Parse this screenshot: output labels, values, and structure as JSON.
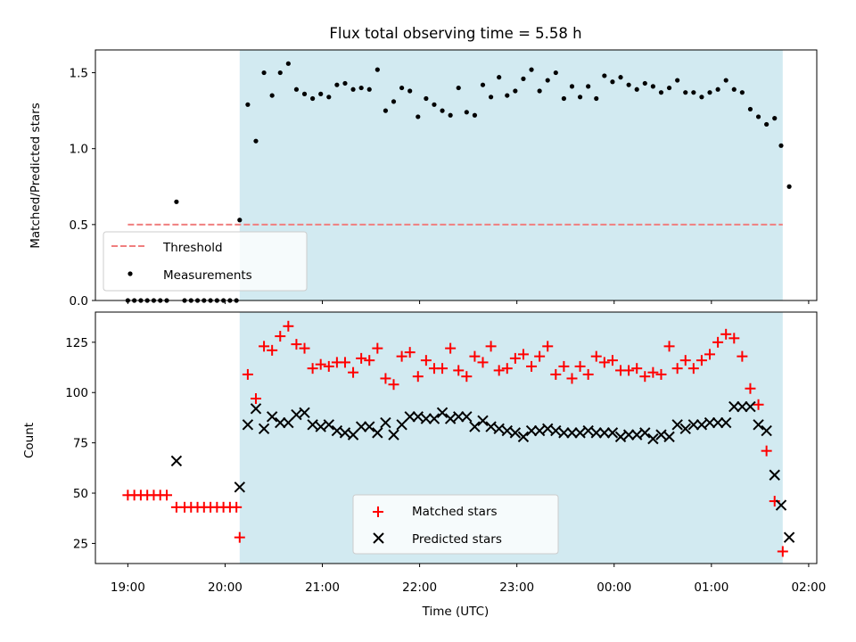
{
  "chart_data": [
    {
      "type": "scatter",
      "title": "Flux total observing time = 5.58 h",
      "ylabel": "Matched/Predicted stars",
      "xlim": [
        "18:40",
        "02:05"
      ],
      "ylim": [
        0,
        1.65
      ],
      "yticks": [
        0.0,
        0.5,
        1.0,
        1.5
      ],
      "ytick_labels": [
        "0.0",
        "0.5",
        "1.0",
        "1.5"
      ],
      "shaded_interval": {
        "start": "20:09",
        "end": "01:44",
        "color": "#add8e6"
      },
      "threshold": {
        "name": "Threshold",
        "value": 0.5,
        "x_start": "19:00",
        "x_end": "01:44",
        "color": "#f07f7f"
      },
      "legend": {
        "placement": "lower-left",
        "entries": [
          "Threshold",
          "Measurements"
        ]
      },
      "series": [
        {
          "name": "Measurements",
          "color": "#000000",
          "marker": "dot",
          "points": [
            [
              "19:00",
              0.0
            ],
            [
              "19:04",
              0.0
            ],
            [
              "19:08",
              0.0
            ],
            [
              "19:12",
              0.0
            ],
            [
              "19:16",
              0.0
            ],
            [
              "19:20",
              0.0
            ],
            [
              "19:24",
              0.0
            ],
            [
              "19:30",
              0.65
            ],
            [
              "19:35",
              0.0
            ],
            [
              "19:39",
              0.0
            ],
            [
              "19:43",
              0.0
            ],
            [
              "19:47",
              0.0
            ],
            [
              "19:51",
              0.0
            ],
            [
              "19:55",
              0.0
            ],
            [
              "19:59",
              0.0
            ],
            [
              "20:03",
              0.0
            ],
            [
              "20:07",
              0.0
            ],
            [
              "20:09",
              0.53
            ],
            [
              "20:14",
              1.29
            ],
            [
              "20:19",
              1.05
            ],
            [
              "20:24",
              1.5
            ],
            [
              "20:29",
              1.35
            ],
            [
              "20:34",
              1.5
            ],
            [
              "20:39",
              1.56
            ],
            [
              "20:44",
              1.39
            ],
            [
              "20:49",
              1.36
            ],
            [
              "20:54",
              1.33
            ],
            [
              "20:59",
              1.36
            ],
            [
              "21:04",
              1.34
            ],
            [
              "21:09",
              1.42
            ],
            [
              "21:14",
              1.43
            ],
            [
              "21:19",
              1.39
            ],
            [
              "21:24",
              1.4
            ],
            [
              "21:29",
              1.39
            ],
            [
              "21:34",
              1.52
            ],
            [
              "21:39",
              1.25
            ],
            [
              "21:44",
              1.31
            ],
            [
              "21:49",
              1.4
            ],
            [
              "21:54",
              1.38
            ],
            [
              "21:59",
              1.21
            ],
            [
              "22:04",
              1.33
            ],
            [
              "22:09",
              1.29
            ],
            [
              "22:14",
              1.25
            ],
            [
              "22:19",
              1.22
            ],
            [
              "22:24",
              1.4
            ],
            [
              "22:29",
              1.24
            ],
            [
              "22:34",
              1.22
            ],
            [
              "22:39",
              1.42
            ],
            [
              "22:44",
              1.34
            ],
            [
              "22:49",
              1.47
            ],
            [
              "22:54",
              1.35
            ],
            [
              "22:59",
              1.38
            ],
            [
              "23:04",
              1.46
            ],
            [
              "23:09",
              1.52
            ],
            [
              "23:14",
              1.38
            ],
            [
              "23:19",
              1.45
            ],
            [
              "23:24",
              1.5
            ],
            [
              "23:29",
              1.33
            ],
            [
              "23:34",
              1.41
            ],
            [
              "23:39",
              1.34
            ],
            [
              "23:44",
              1.41
            ],
            [
              "23:49",
              1.33
            ],
            [
              "23:54",
              1.48
            ],
            [
              "23:59",
              1.44
            ],
            [
              "00:04",
              1.47
            ],
            [
              "00:09",
              1.42
            ],
            [
              "00:14",
              1.39
            ],
            [
              "00:19",
              1.43
            ],
            [
              "00:24",
              1.41
            ],
            [
              "00:29",
              1.37
            ],
            [
              "00:34",
              1.4
            ],
            [
              "00:39",
              1.45
            ],
            [
              "00:44",
              1.37
            ],
            [
              "00:49",
              1.37
            ],
            [
              "00:54",
              1.34
            ],
            [
              "00:59",
              1.37
            ],
            [
              "01:04",
              1.39
            ],
            [
              "01:09",
              1.45
            ],
            [
              "01:14",
              1.39
            ],
            [
              "01:19",
              1.37
            ],
            [
              "01:24",
              1.26
            ],
            [
              "01:29",
              1.21
            ],
            [
              "01:34",
              1.16
            ],
            [
              "01:39",
              1.2
            ],
            [
              "01:43",
              1.02
            ],
            [
              "01:48",
              0.75
            ]
          ]
        }
      ]
    },
    {
      "type": "scatter",
      "xlabel": "Time (UTC)",
      "ylabel": "Count",
      "xlim": [
        "18:40",
        "02:05"
      ],
      "ylim": [
        15,
        140
      ],
      "yticks": [
        25,
        50,
        75,
        100,
        125
      ],
      "ytick_labels": [
        "25",
        "50",
        "75",
        "100",
        "125"
      ],
      "xtick_labels": [
        "19:00",
        "20:00",
        "21:00",
        "22:00",
        "23:00",
        "00:00",
        "01:00",
        "02:00"
      ],
      "shaded_interval": {
        "start": "20:09",
        "end": "01:44",
        "color": "#add8e6"
      },
      "legend": {
        "placement": "bottom-center",
        "entries": [
          "Matched stars",
          "Predicted stars"
        ]
      },
      "series": [
        {
          "name": "Matched stars",
          "color": "#ff0000",
          "marker": "plus",
          "points": [
            [
              "19:00",
              49
            ],
            [
              "19:04",
              49
            ],
            [
              "19:08",
              49
            ],
            [
              "19:12",
              49
            ],
            [
              "19:16",
              49
            ],
            [
              "19:20",
              49
            ],
            [
              "19:24",
              49
            ],
            [
              "19:30",
              43
            ],
            [
              "19:35",
              43
            ],
            [
              "19:39",
              43
            ],
            [
              "19:43",
              43
            ],
            [
              "19:47",
              43
            ],
            [
              "19:51",
              43
            ],
            [
              "19:55",
              43
            ],
            [
              "19:59",
              43
            ],
            [
              "20:03",
              43
            ],
            [
              "20:07",
              43
            ],
            [
              "20:09",
              28
            ],
            [
              "20:14",
              109
            ],
            [
              "20:19",
              97
            ],
            [
              "20:24",
              123
            ],
            [
              "20:29",
              121
            ],
            [
              "20:34",
              128
            ],
            [
              "20:39",
              133
            ],
            [
              "20:44",
              124
            ],
            [
              "20:49",
              122
            ],
            [
              "20:54",
              112
            ],
            [
              "20:59",
              114
            ],
            [
              "21:04",
              113
            ],
            [
              "21:09",
              115
            ],
            [
              "21:14",
              115
            ],
            [
              "21:19",
              110
            ],
            [
              "21:24",
              117
            ],
            [
              "21:29",
              116
            ],
            [
              "21:34",
              122
            ],
            [
              "21:39",
              107
            ],
            [
              "21:44",
              104
            ],
            [
              "21:49",
              118
            ],
            [
              "21:54",
              120
            ],
            [
              "21:59",
              108
            ],
            [
              "22:04",
              116
            ],
            [
              "22:09",
              112
            ],
            [
              "22:14",
              112
            ],
            [
              "22:19",
              122
            ],
            [
              "22:24",
              111
            ],
            [
              "22:29",
              108
            ],
            [
              "22:34",
              118
            ],
            [
              "22:39",
              115
            ],
            [
              "22:44",
              123
            ],
            [
              "22:49",
              111
            ],
            [
              "22:54",
              112
            ],
            [
              "22:59",
              117
            ],
            [
              "23:04",
              119
            ],
            [
              "23:09",
              113
            ],
            [
              "23:14",
              118
            ],
            [
              "23:19",
              123
            ],
            [
              "23:24",
              109
            ],
            [
              "23:29",
              113
            ],
            [
              "23:34",
              107
            ],
            [
              "23:39",
              113
            ],
            [
              "23:44",
              109
            ],
            [
              "23:49",
              118
            ],
            [
              "23:54",
              115
            ],
            [
              "23:59",
              116
            ],
            [
              "00:04",
              111
            ],
            [
              "00:09",
              111
            ],
            [
              "00:14",
              112
            ],
            [
              "00:19",
              108
            ],
            [
              "00:24",
              110
            ],
            [
              "00:29",
              109
            ],
            [
              "00:34",
              123
            ],
            [
              "00:39",
              112
            ],
            [
              "00:44",
              116
            ],
            [
              "00:49",
              112
            ],
            [
              "00:54",
              116
            ],
            [
              "00:59",
              119
            ],
            [
              "01:04",
              125
            ],
            [
              "01:09",
              129
            ],
            [
              "01:14",
              127
            ],
            [
              "01:19",
              118
            ],
            [
              "01:24",
              102
            ],
            [
              "01:29",
              94
            ],
            [
              "01:34",
              71
            ],
            [
              "01:39",
              46
            ],
            [
              "01:44",
              21
            ]
          ]
        },
        {
          "name": "Predicted stars",
          "color": "#000000",
          "marker": "x",
          "points": [
            [
              "19:30",
              66
            ],
            [
              "20:09",
              53
            ],
            [
              "20:14",
              84
            ],
            [
              "20:19",
              92
            ],
            [
              "20:24",
              82
            ],
            [
              "20:29",
              88
            ],
            [
              "20:34",
              85
            ],
            [
              "20:39",
              85
            ],
            [
              "20:44",
              89
            ],
            [
              "20:49",
              90
            ],
            [
              "20:54",
              84
            ],
            [
              "20:59",
              83
            ],
            [
              "21:04",
              84
            ],
            [
              "21:09",
              81
            ],
            [
              "21:14",
              80
            ],
            [
              "21:19",
              79
            ],
            [
              "21:24",
              83
            ],
            [
              "21:29",
              83
            ],
            [
              "21:34",
              80
            ],
            [
              "21:39",
              85
            ],
            [
              "21:44",
              79
            ],
            [
              "21:49",
              84
            ],
            [
              "21:54",
              88
            ],
            [
              "21:59",
              88
            ],
            [
              "22:04",
              87
            ],
            [
              "22:09",
              87
            ],
            [
              "22:14",
              90
            ],
            [
              "22:19",
              87
            ],
            [
              "22:24",
              88
            ],
            [
              "22:29",
              88
            ],
            [
              "22:34",
              83
            ],
            [
              "22:39",
              86
            ],
            [
              "22:44",
              83
            ],
            [
              "22:49",
              82
            ],
            [
              "22:54",
              81
            ],
            [
              "22:59",
              80
            ],
            [
              "23:04",
              78
            ],
            [
              "23:09",
              81
            ],
            [
              "23:14",
              81
            ],
            [
              "23:19",
              82
            ],
            [
              "23:24",
              81
            ],
            [
              "23:29",
              80
            ],
            [
              "23:34",
              80
            ],
            [
              "23:39",
              80
            ],
            [
              "23:44",
              81
            ],
            [
              "23:49",
              80
            ],
            [
              "23:54",
              80
            ],
            [
              "23:59",
              80
            ],
            [
              "00:04",
              78
            ],
            [
              "00:09",
              79
            ],
            [
              "00:14",
              79
            ],
            [
              "00:19",
              80
            ],
            [
              "00:24",
              77
            ],
            [
              "00:29",
              79
            ],
            [
              "00:34",
              78
            ],
            [
              "00:39",
              84
            ],
            [
              "00:44",
              82
            ],
            [
              "00:49",
              84
            ],
            [
              "00:54",
              84
            ],
            [
              "00:59",
              85
            ],
            [
              "01:04",
              85
            ],
            [
              "01:09",
              85
            ],
            [
              "01:14",
              93
            ],
            [
              "01:19",
              93
            ],
            [
              "01:24",
              93
            ],
            [
              "01:29",
              84
            ],
            [
              "01:34",
              81
            ],
            [
              "01:39",
              59
            ],
            [
              "01:43",
              44
            ],
            [
              "01:48",
              28
            ]
          ]
        }
      ]
    }
  ]
}
